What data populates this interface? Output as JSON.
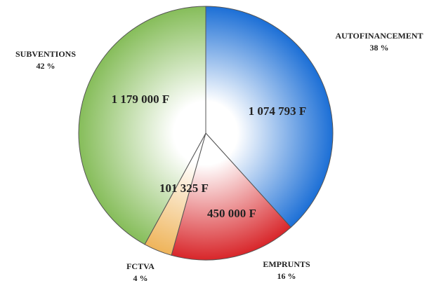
{
  "chart_data": {
    "type": "pie",
    "categories": [
      "AUTOFINANCEMENT",
      "EMPRUNTS",
      "FCTVA",
      "SUBVENTIONS"
    ],
    "values": [
      1074793,
      450000,
      101325,
      1179000
    ],
    "value_labels": [
      "1 074 793 F",
      "450 000 F",
      "101 325 F",
      "1 179 000 F"
    ],
    "percent_labels": [
      "38 %",
      "16 %",
      "4 %",
      "42 %"
    ],
    "colors": [
      "#1c6fd6",
      "#d8262a",
      "#efb45a",
      "#86bd5a"
    ]
  }
}
